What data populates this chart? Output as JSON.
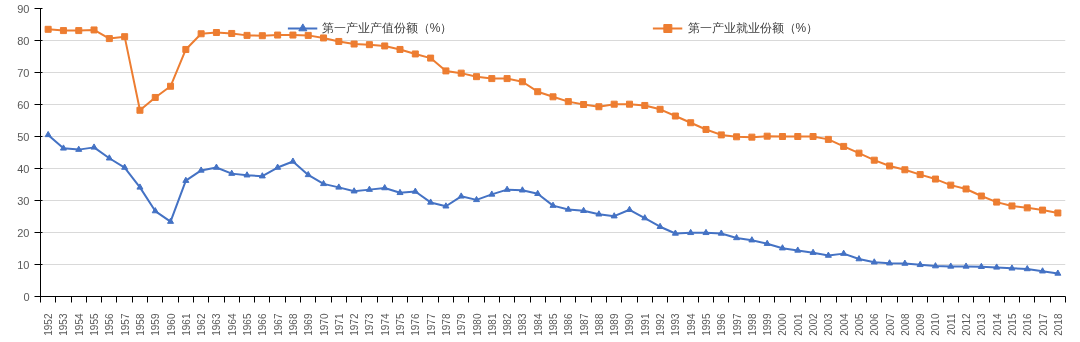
{
  "chart_data": {
    "type": "line",
    "categories": [
      "1952",
      "1953",
      "1954",
      "1955",
      "1956",
      "1957",
      "1958",
      "1959",
      "1960",
      "1961",
      "1962",
      "1963",
      "1964",
      "1965",
      "1966",
      "1967",
      "1968",
      "1969",
      "1970",
      "1971",
      "1972",
      "1973",
      "1974",
      "1975",
      "1976",
      "1977",
      "1978",
      "1979",
      "1980",
      "1981",
      "1982",
      "1983",
      "1984",
      "1985",
      "1986",
      "1987",
      "1988",
      "1989",
      "1990",
      "1991",
      "1992",
      "1993",
      "1994",
      "1995",
      "1996",
      "1997",
      "1998",
      "1999",
      "2000",
      "2001",
      "2002",
      "2003",
      "2004",
      "2005",
      "2006",
      "2007",
      "2008",
      "2009",
      "2010",
      "2011",
      "2012",
      "2013",
      "2014",
      "2015",
      "2016",
      "2017",
      "2018"
    ],
    "series": [
      {
        "name": "第一产业产值份额（%）",
        "color": "#4472c4",
        "marker": "triangle",
        "values": [
          50.5,
          46.3,
          45.9,
          46.6,
          43.2,
          40.3,
          34.1,
          26.7,
          23.4,
          36.2,
          39.4,
          40.3,
          38.4,
          37.9,
          37.6,
          40.3,
          42.2,
          38.0,
          35.2,
          34.1,
          32.9,
          33.4,
          33.9,
          32.4,
          32.8,
          29.4,
          28.2,
          31.3,
          30.2,
          31.9,
          33.4,
          33.2,
          32.1,
          28.4,
          27.2,
          26.8,
          25.7,
          25.1,
          27.1,
          24.5,
          21.8,
          19.7,
          19.9,
          19.9,
          19.7,
          18.3,
          17.6,
          16.5,
          15.1,
          14.4,
          13.7,
          12.8,
          13.4,
          11.7,
          10.7,
          10.4,
          10.3,
          9.9,
          9.5,
          9.4,
          9.4,
          9.3,
          9.1,
          8.8,
          8.6,
          7.9,
          7.2
        ]
      },
      {
        "name": "第一产业就业份额（%）",
        "color": "#ed7d31",
        "marker": "square",
        "values": [
          83.5,
          83.1,
          83.1,
          83.3,
          80.6,
          81.2,
          58.2,
          62.2,
          65.7,
          77.2,
          82.1,
          82.5,
          82.2,
          81.6,
          81.5,
          81.7,
          81.7,
          81.6,
          80.8,
          79.7,
          78.9,
          78.7,
          78.3,
          77.2,
          75.8,
          74.5,
          70.5,
          69.8,
          68.7,
          68.1,
          68.1,
          67.1,
          64.0,
          62.4,
          60.9,
          60.0,
          59.3,
          60.1,
          60.1,
          59.7,
          58.5,
          56.4,
          54.3,
          52.2,
          50.5,
          49.9,
          49.8,
          50.1,
          50.0,
          50.0,
          50.0,
          49.1,
          46.9,
          44.8,
          42.6,
          40.8,
          39.6,
          38.1,
          36.7,
          34.8,
          33.6,
          31.4,
          29.5,
          28.3,
          27.7,
          27.0,
          26.1
        ]
      }
    ],
    "ylim": [
      0,
      90
    ],
    "yticks": [
      0,
      10,
      20,
      30,
      40,
      50,
      60,
      70,
      80,
      90
    ],
    "grid": "y",
    "legend": "top",
    "line_style": "solid"
  }
}
